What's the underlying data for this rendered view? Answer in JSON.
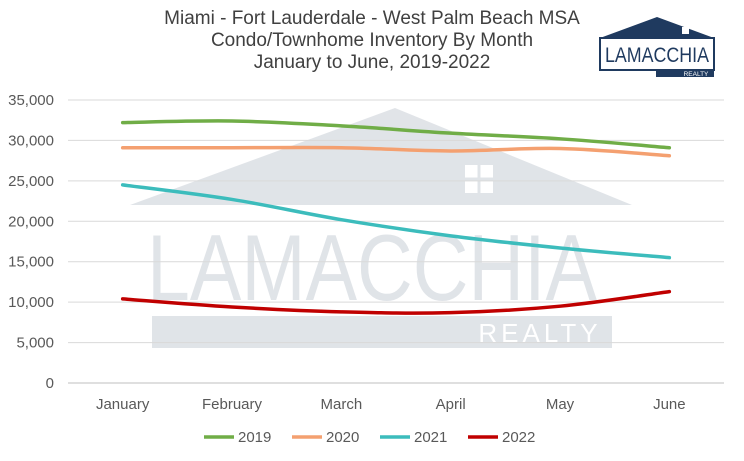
{
  "chart_data": {
    "type": "line",
    "title_lines": [
      "Miami - Fort Lauderdale - West Palm Beach MSA",
      "Condo/Townhome Inventory By Month",
      "January to June, 2019-2022"
    ],
    "categories": [
      "January",
      "February",
      "March",
      "April",
      "May",
      "June"
    ],
    "series": [
      {
        "name": "2019",
        "color": "#70ad47",
        "values": [
          32200,
          32400,
          31800,
          30900,
          30200,
          29100
        ]
      },
      {
        "name": "2020",
        "color": "#f4a070",
        "values": [
          29100,
          29100,
          29100,
          28700,
          29000,
          28100
        ]
      },
      {
        "name": "2021",
        "color": "#3cbcbc",
        "values": [
          24500,
          22700,
          20200,
          18200,
          16700,
          15500
        ]
      },
      {
        "name": "2022",
        "color": "#c00000",
        "values": [
          10400,
          9400,
          8800,
          8700,
          9500,
          11300
        ]
      }
    ],
    "ylim": [
      0,
      35000
    ],
    "yticks": [
      "0",
      "5,000",
      "10,000",
      "15,000",
      "20,000",
      "25,000",
      "30,000",
      "35,000"
    ],
    "grid": true,
    "legend_position": "bottom"
  },
  "logo": {
    "name": "LAMACCHIA",
    "tagline": "REALTY",
    "color": "#1f3a5f"
  },
  "watermark": {
    "name": "LAMACCHIA",
    "tagline": "REALTY",
    "color": "#c8ced6"
  }
}
